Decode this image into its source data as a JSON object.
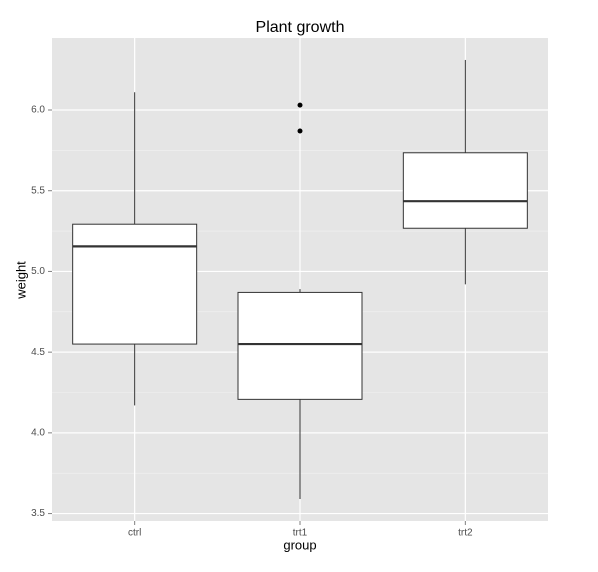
{
  "chart_data": {
    "type": "boxplot",
    "title": "Plant growth",
    "x_label": "group",
    "y_label": "weight",
    "categories": [
      "ctrl",
      "trt1",
      "trt2"
    ],
    "boxes": [
      {
        "min": 4.17,
        "q1": 4.55,
        "median": 5.155,
        "q3": 5.2925,
        "max": 6.11,
        "outliers": []
      },
      {
        "min": 3.59,
        "q1": 4.2075,
        "median": 4.55,
        "q3": 4.87,
        "max": 4.89,
        "outliers": [
          5.87,
          6.03
        ]
      },
      {
        "min": 4.92,
        "q1": 5.2675,
        "median": 5.435,
        "q3": 5.735,
        "max": 6.31,
        "outliers": []
      }
    ],
    "box_fill": "#ffffff",
    "box_stroke": "#333333",
    "panel_color": "#e5e5e5",
    "grid": true,
    "ylim": [
      3.454,
      6.446
    ],
    "yticks": [
      3.5,
      {
        "value": 4,
        "label": "4.0"
      },
      4.5,
      {
        "value": 5,
        "label": "5.0"
      },
      5.5,
      {
        "value": 6,
        "label": "6.0"
      }
    ]
  }
}
